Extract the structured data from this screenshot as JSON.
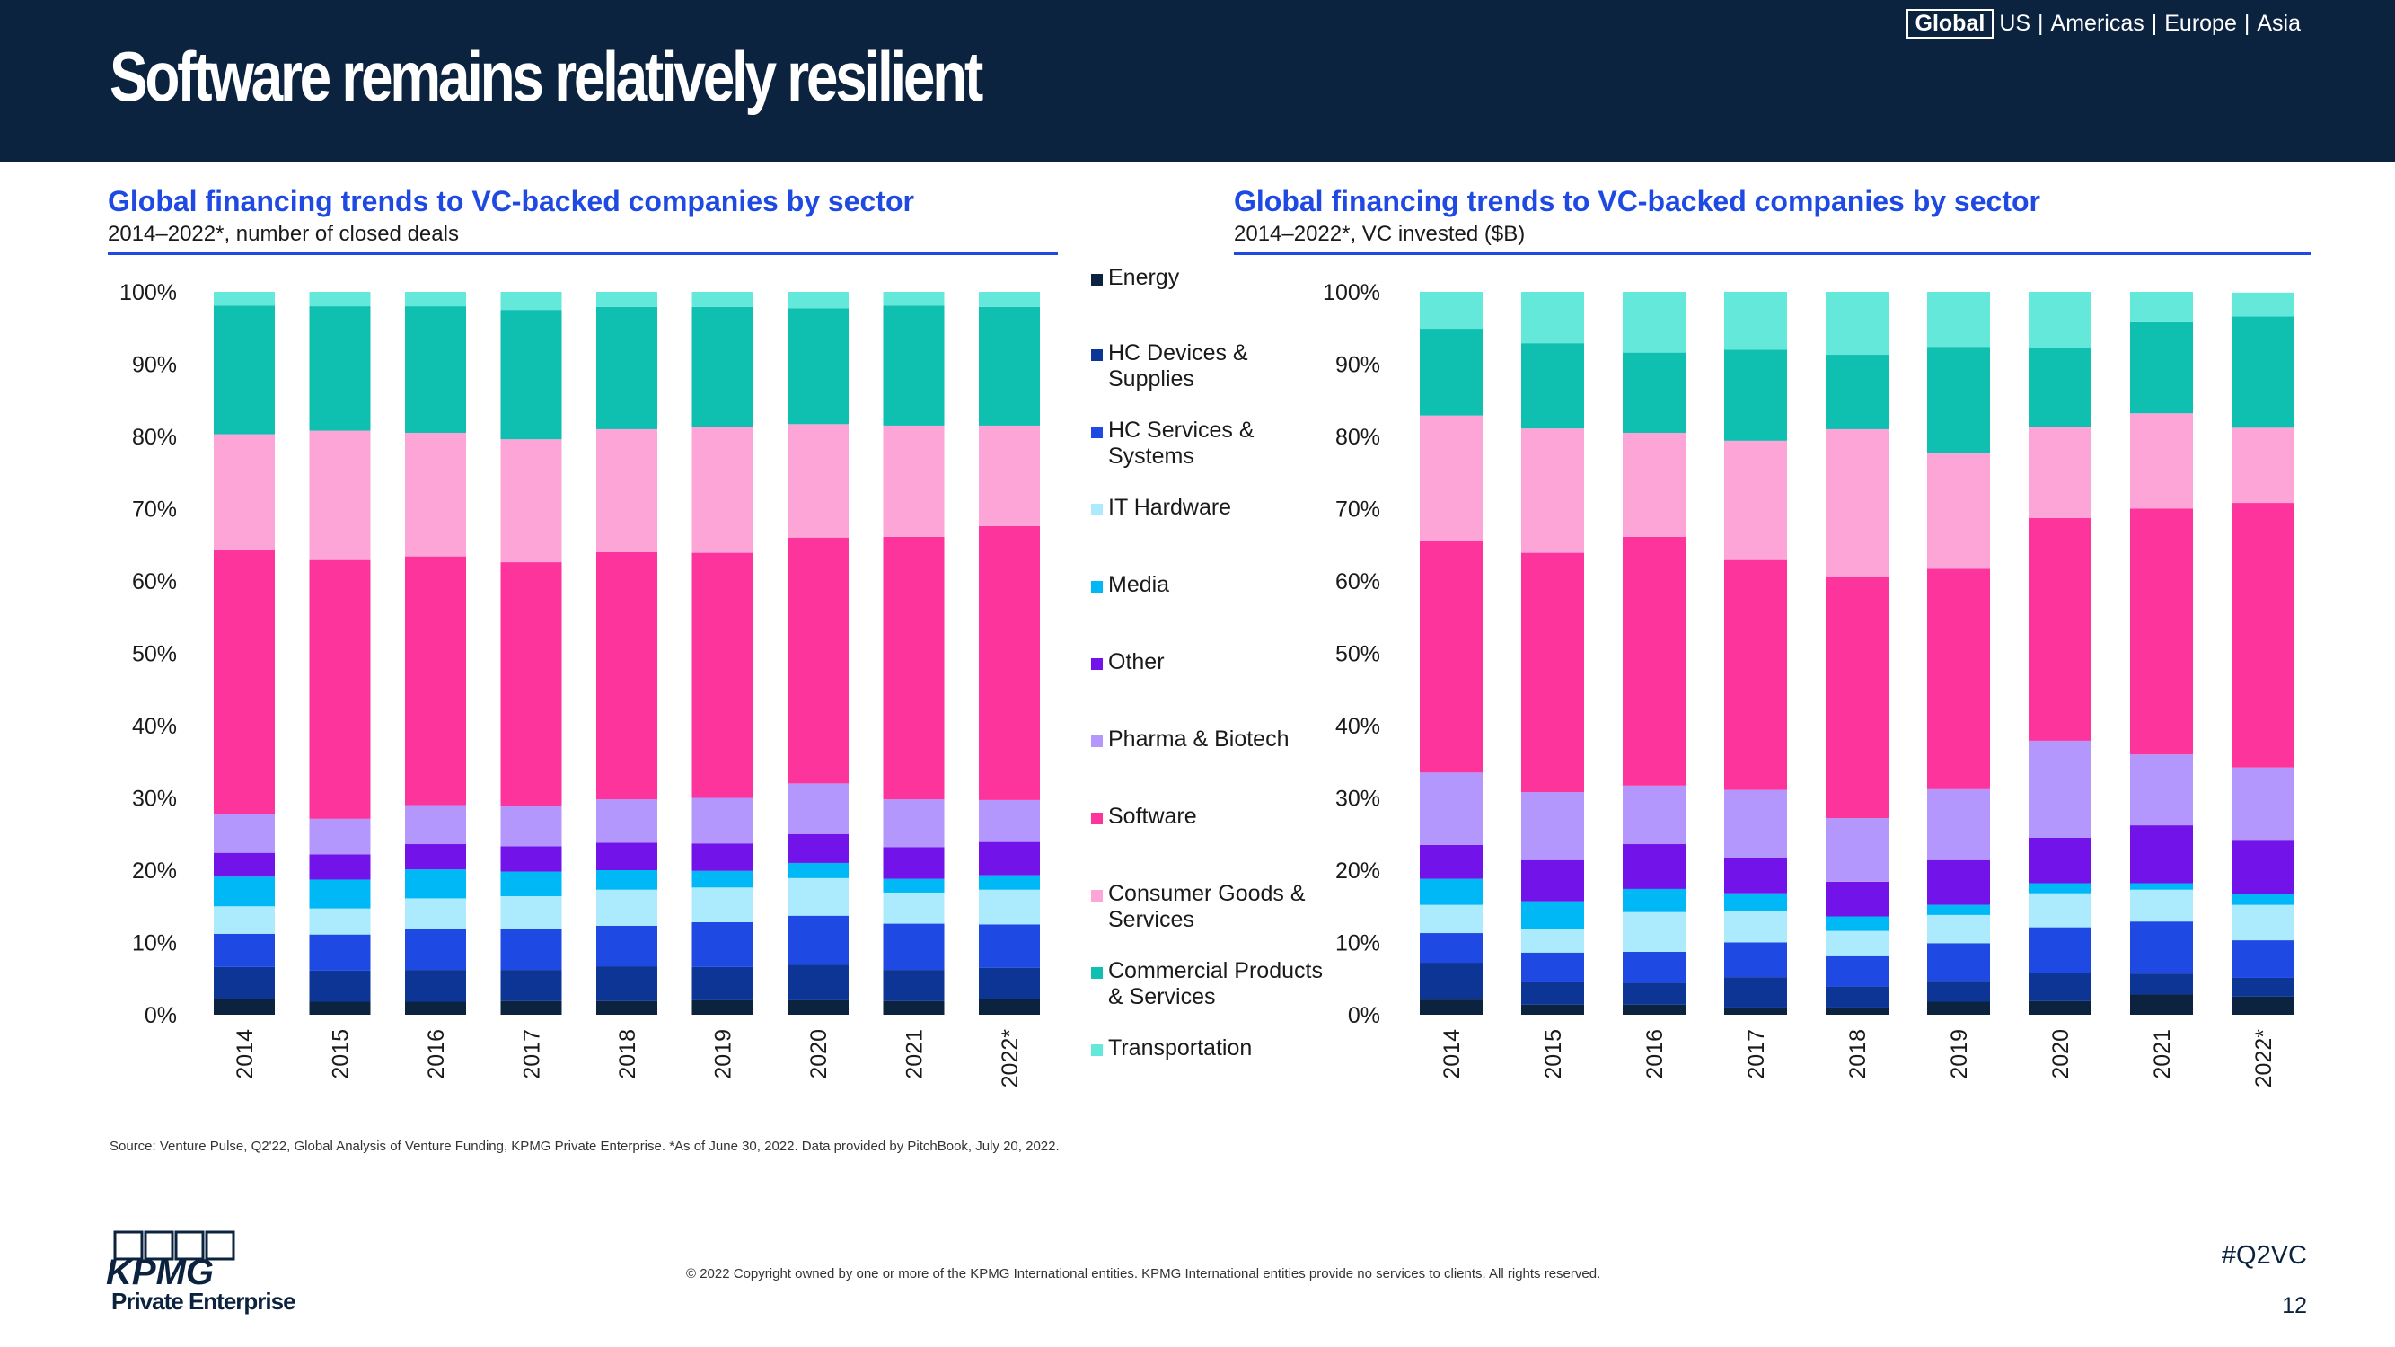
{
  "header": {
    "title": "Software remains relatively resilient",
    "regions": {
      "selected": "Global",
      "others": [
        "US",
        "Americas",
        "Europe",
        "Asia"
      ],
      "separator": "|"
    }
  },
  "colors": {
    "header_bg": "#0c233f",
    "accent": "#1e49e2"
  },
  "sector_legend": [
    {
      "name": "Transportation",
      "color": "#64e8d9"
    },
    {
      "name": "Commercial Products & Services",
      "color": "#0fbfb0"
    },
    {
      "name": "Consumer Goods & Services",
      "color": "#fca5d6"
    },
    {
      "name": "Software",
      "color": "#fd349c"
    },
    {
      "name": "Pharma & Biotech",
      "color": "#b497fc"
    },
    {
      "name": "Other",
      "color": "#7213ea"
    },
    {
      "name": "Media",
      "color": "#00b8f5"
    },
    {
      "name": "IT Hardware",
      "color": "#acebfd"
    },
    {
      "name": "HC Services & Systems",
      "color": "#1e49e2"
    },
    {
      "name": "HC Devices & Supplies",
      "color": "#0c3595"
    },
    {
      "name": "Energy",
      "color": "#0c233f"
    }
  ],
  "chart_data": [
    {
      "type": "bar",
      "stacked": true,
      "title": "Global financing trends to VC-backed companies by sector",
      "subtitle": "2014–2022*, number of closed deals",
      "categories": [
        "2014",
        "2015",
        "2016",
        "2017",
        "2018",
        "2019",
        "2020",
        "2021",
        "2022*"
      ],
      "ylim": [
        0,
        100
      ],
      "yticks": [
        "0%",
        "10%",
        "20%",
        "30%",
        "40%",
        "50%",
        "60%",
        "70%",
        "80%",
        "90%",
        "100%"
      ],
      "series": [
        {
          "name": "Energy",
          "values": [
            2.2,
            1.8,
            1.8,
            1.9,
            1.9,
            2.0,
            2.0,
            1.9,
            2.2
          ]
        },
        {
          "name": "HC Devices & Supplies",
          "values": [
            4.4,
            4.3,
            4.4,
            4.3,
            4.8,
            4.6,
            4.9,
            4.3,
            4.3
          ]
        },
        {
          "name": "HC Services & Systems",
          "values": [
            4.6,
            5.0,
            5.7,
            5.7,
            5.6,
            6.2,
            6.8,
            6.4,
            6.0
          ]
        },
        {
          "name": "IT Hardware",
          "values": [
            3.8,
            3.6,
            4.2,
            4.5,
            5.0,
            4.8,
            5.2,
            4.3,
            4.8
          ]
        },
        {
          "name": "Media",
          "values": [
            4.1,
            4.0,
            4.0,
            3.4,
            2.7,
            2.3,
            2.1,
            1.9,
            2.0
          ]
        },
        {
          "name": "Other",
          "values": [
            3.3,
            3.5,
            3.5,
            3.5,
            3.8,
            3.8,
            4.0,
            4.4,
            4.6
          ]
        },
        {
          "name": "Pharma & Biotech",
          "values": [
            5.3,
            4.9,
            5.4,
            5.6,
            6.0,
            6.3,
            7.0,
            6.6,
            5.8
          ]
        },
        {
          "name": "Software",
          "values": [
            36.6,
            35.8,
            34.4,
            33.7,
            34.2,
            33.9,
            34.0,
            36.3,
            37.9
          ]
        },
        {
          "name": "Consumer Goods & Services",
          "values": [
            16.0,
            17.9,
            17.1,
            17.0,
            17.0,
            17.4,
            15.7,
            15.4,
            13.9
          ]
        },
        {
          "name": "Commercial Products & Services",
          "values": [
            17.8,
            17.2,
            17.5,
            17.9,
            16.9,
            16.6,
            16.0,
            16.6,
            16.4
          ]
        },
        {
          "name": "Transportation",
          "values": [
            1.9,
            2.0,
            2.0,
            2.5,
            2.1,
            2.1,
            2.3,
            1.9,
            2.1
          ]
        }
      ]
    },
    {
      "type": "bar",
      "stacked": true,
      "title": "Global financing trends to VC-backed companies by sector",
      "subtitle": "2014–2022*, VC invested ($B)",
      "categories": [
        "2014",
        "2015",
        "2016",
        "2017",
        "2018",
        "2019",
        "2020",
        "2021",
        "2022*"
      ],
      "ylim": [
        0,
        100
      ],
      "yticks": [
        "0%",
        "10%",
        "20%",
        "30%",
        "40%",
        "50%",
        "60%",
        "70%",
        "80%",
        "90%",
        "100%"
      ],
      "series": [
        {
          "name": "Energy",
          "values": [
            2.1,
            1.4,
            1.4,
            1.0,
            1.0,
            1.8,
            1.9,
            2.8,
            2.5
          ]
        },
        {
          "name": "HC Devices & Supplies",
          "values": [
            5.1,
            3.2,
            3.0,
            4.2,
            2.9,
            2.9,
            3.9,
            2.9,
            2.6
          ]
        },
        {
          "name": "HC Services & Systems",
          "values": [
            4.1,
            4.0,
            4.3,
            4.8,
            4.2,
            5.2,
            6.3,
            7.2,
            5.2
          ]
        },
        {
          "name": "IT Hardware",
          "values": [
            3.9,
            3.3,
            5.5,
            4.4,
            3.5,
            3.9,
            4.7,
            4.4,
            4.9
          ]
        },
        {
          "name": "Media",
          "values": [
            3.6,
            3.8,
            3.2,
            2.4,
            2.0,
            1.4,
            1.4,
            0.9,
            1.5
          ]
        },
        {
          "name": "Other",
          "values": [
            4.7,
            5.7,
            6.2,
            4.9,
            4.8,
            6.2,
            6.3,
            8.0,
            7.5
          ]
        },
        {
          "name": "Pharma & Biotech",
          "values": [
            10.0,
            9.4,
            8.1,
            9.4,
            8.8,
            9.8,
            13.4,
            9.8,
            10.0
          ]
        },
        {
          "name": "Software",
          "values": [
            32.0,
            33.1,
            34.4,
            31.8,
            33.3,
            30.5,
            30.8,
            34.0,
            36.6
          ]
        },
        {
          "name": "Consumer Goods & Services",
          "values": [
            17.4,
            17.2,
            14.4,
            16.5,
            20.5,
            16.0,
            12.6,
            13.2,
            10.4
          ]
        },
        {
          "name": "Commercial Products & Services",
          "values": [
            12.0,
            11.8,
            11.1,
            12.6,
            10.3,
            14.7,
            10.9,
            12.6,
            15.4
          ]
        },
        {
          "name": "Transportation",
          "values": [
            5.1,
            7.1,
            8.4,
            8.0,
            8.7,
            7.6,
            7.8,
            4.2,
            3.3
          ]
        }
      ]
    }
  ],
  "footer": {
    "source": "Source: Venture Pulse, Q2'22, Global Analysis of Venture Funding, KPMG Private Enterprise. *As of June 30, 2022. Data provided by PitchBook, July 20, 2022.",
    "copyright": "© 2022 Copyright owned by one or more of the KPMG International entities. KPMG International entities provide no services to clients. All rights reserved.",
    "hashtag": "#Q2VC",
    "page_number": "12",
    "logo_text": "KPMG",
    "logo_subtext": "Private Enterprise"
  }
}
